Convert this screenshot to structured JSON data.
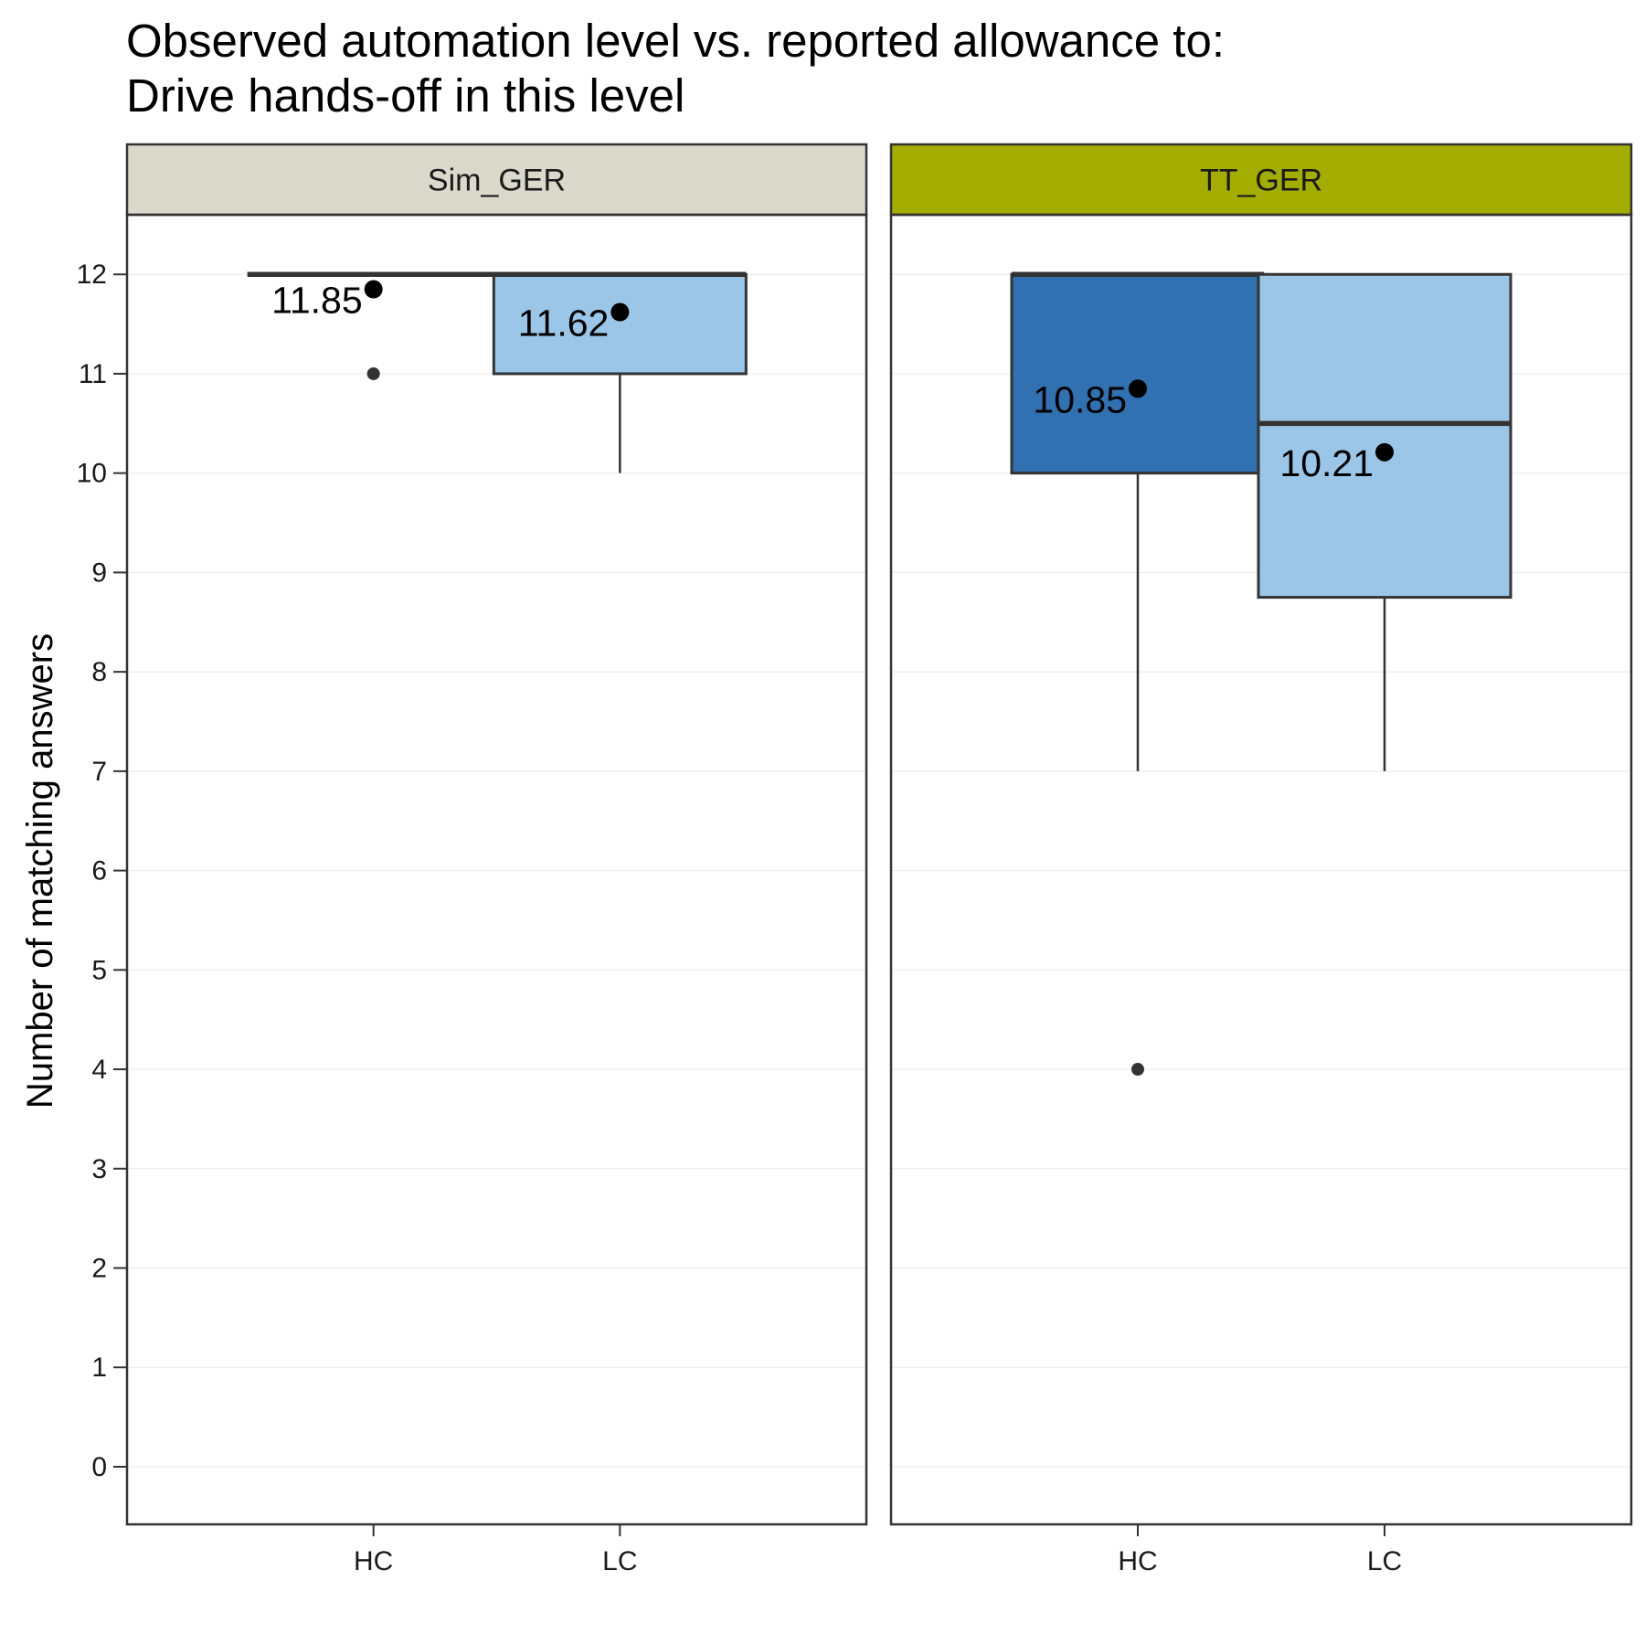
{
  "chart_data": {
    "type": "box",
    "title_line1": "Observed automation level vs. reported allowance to:",
    "title_line2": "Drive hands-off in this level",
    "ylabel": "Number of matching answers",
    "xlabel": "",
    "ylim": [
      -0.58,
      12.6
    ],
    "y_ticks": [
      0,
      1,
      2,
      3,
      4,
      5,
      6,
      7,
      8,
      9,
      10,
      11,
      12
    ],
    "grid": true,
    "categories": [
      "HC",
      "LC"
    ],
    "panels": [
      {
        "name": "Sim_GER",
        "strip_color": "#d9d9cc",
        "boxes": [
          {
            "category": "HC",
            "fill": "#3170b1",
            "lower_whisker": 12,
            "q1": 12,
            "median": 12,
            "q3": 12,
            "upper_whisker": 12,
            "outliers": [
              11
            ],
            "mean": 11.85,
            "mean_label": "11.85"
          },
          {
            "category": "LC",
            "fill": "#9bc6e8",
            "lower_whisker": 10,
            "q1": 11,
            "median": 12,
            "q3": 12,
            "upper_whisker": 12,
            "outliers": [],
            "mean": 11.62,
            "mean_label": "11.62"
          }
        ]
      },
      {
        "name": "TT_GER",
        "strip_color": "#a3ad00",
        "boxes": [
          {
            "category": "HC",
            "fill": "#3170b1",
            "lower_whisker": 7,
            "q1": 10,
            "median": 12,
            "q3": 12,
            "upper_whisker": 12,
            "outliers": [
              4
            ],
            "mean": 10.85,
            "mean_label": "10.85"
          },
          {
            "category": "LC",
            "fill": "#9bc6e8",
            "lower_whisker": 7,
            "q1": 8.75,
            "median": 10.5,
            "q3": 12,
            "upper_whisker": 12,
            "outliers": [],
            "mean": 10.21,
            "mean_label": "10.21"
          }
        ]
      }
    ]
  }
}
